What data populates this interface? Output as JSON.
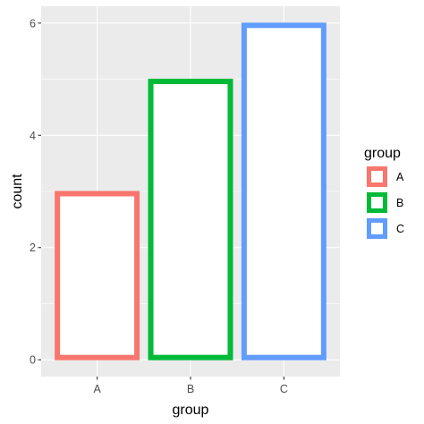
{
  "chart_data": {
    "type": "bar",
    "categories": [
      "A",
      "B",
      "C"
    ],
    "values": [
      3,
      5,
      6
    ],
    "series": [
      {
        "name": "A",
        "values": [
          3,
          null,
          null
        ],
        "color": "#F8766D"
      },
      {
        "name": "B",
        "values": [
          null,
          5,
          null
        ],
        "color": "#00BA38"
      },
      {
        "name": "C",
        "values": [
          null,
          null,
          6
        ],
        "color": "#619CFF"
      }
    ],
    "xlabel": "group",
    "ylabel": "count",
    "ylim": [
      0,
      6
    ],
    "yticks": [
      0,
      2,
      4,
      6
    ],
    "grid": true,
    "panel_background": "#EBEBEB",
    "bar_fill": "#FFFFFF",
    "legend": {
      "title": "group",
      "position": "right",
      "items": [
        "A",
        "B",
        "C"
      ]
    }
  }
}
